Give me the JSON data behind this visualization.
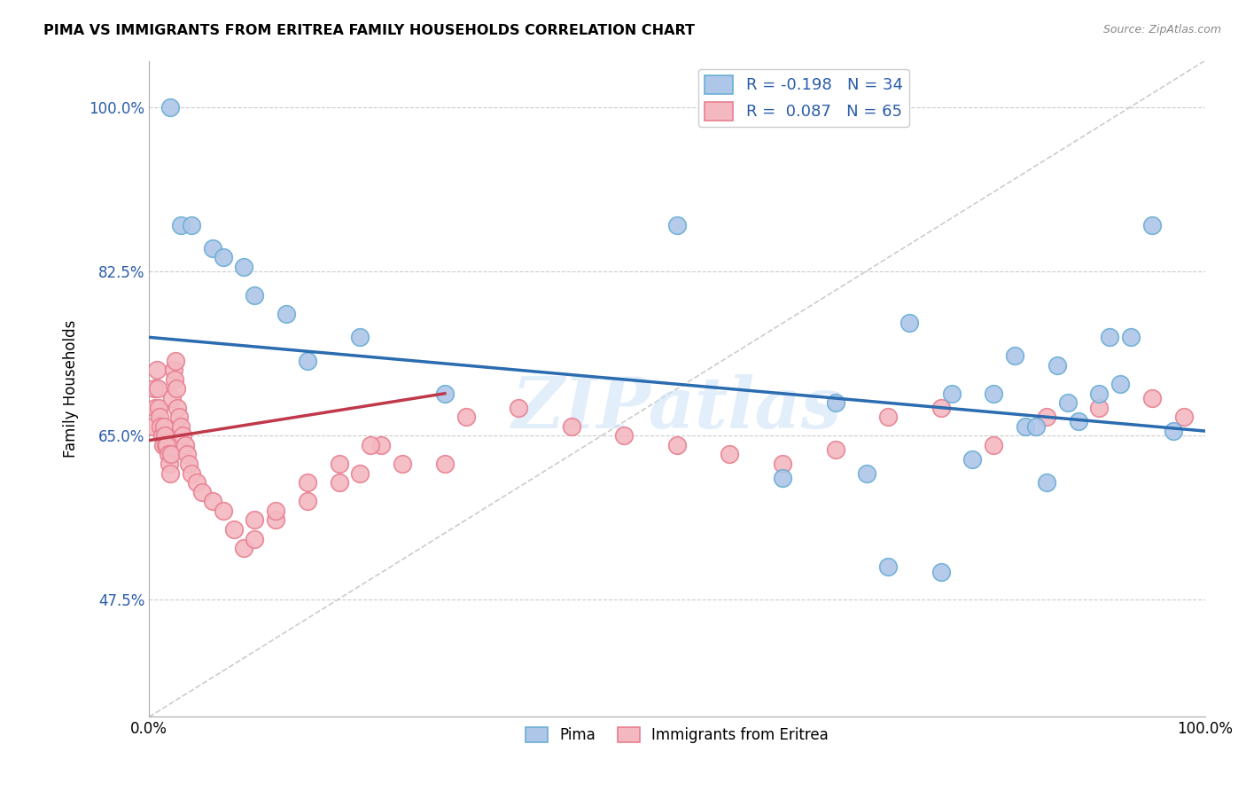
{
  "title": "PIMA VS IMMIGRANTS FROM ERITREA FAMILY HOUSEHOLDS CORRELATION CHART",
  "source": "Source: ZipAtlas.com",
  "ylabel": "Family Households",
  "xlim": [
    0.0,
    1.0
  ],
  "ylim": [
    0.35,
    1.05
  ],
  "yticks": [
    0.475,
    0.65,
    0.825,
    1.0
  ],
  "ytick_labels": [
    "47.5%",
    "65.0%",
    "82.5%",
    "100.0%"
  ],
  "pima_color": "#aec6e8",
  "pima_edge_color": "#6aaed6",
  "eritrea_color": "#f4b8c1",
  "eritrea_edge_color": "#e87f90",
  "trend_blue": "#2b6cb0",
  "trend_pink": "#c0394a",
  "watermark_color": "#d0e4f7",
  "legend_R_color": "#2a5caa",
  "pima_x": [
    0.02,
    0.03,
    0.04,
    0.06,
    0.07,
    0.09,
    0.1,
    0.13,
    0.15,
    0.2,
    0.28,
    0.5,
    0.6,
    0.72,
    0.76,
    0.78,
    0.8,
    0.82,
    0.83,
    0.84,
    0.85,
    0.86,
    0.87,
    0.88,
    0.9,
    0.91,
    0.92,
    0.93,
    0.95,
    0.97,
    0.65,
    0.68,
    0.7,
    0.75
  ],
  "pima_y": [
    1.0,
    0.875,
    0.875,
    0.85,
    0.84,
    0.83,
    0.8,
    0.78,
    0.73,
    0.755,
    0.695,
    0.875,
    0.605,
    0.77,
    0.695,
    0.625,
    0.695,
    0.735,
    0.66,
    0.66,
    0.6,
    0.725,
    0.685,
    0.665,
    0.695,
    0.755,
    0.705,
    0.755,
    0.875,
    0.655,
    0.685,
    0.61,
    0.51,
    0.505
  ],
  "eritrea_x": [
    0.004,
    0.005,
    0.006,
    0.007,
    0.008,
    0.009,
    0.01,
    0.011,
    0.012,
    0.013,
    0.014,
    0.015,
    0.016,
    0.017,
    0.018,
    0.019,
    0.02,
    0.021,
    0.022,
    0.023,
    0.024,
    0.025,
    0.026,
    0.027,
    0.028,
    0.03,
    0.032,
    0.034,
    0.036,
    0.038,
    0.04,
    0.045,
    0.05,
    0.06,
    0.07,
    0.08,
    0.09,
    0.1,
    0.12,
    0.15,
    0.18,
    0.2,
    0.22,
    0.28,
    0.3,
    0.35,
    0.4,
    0.45,
    0.5,
    0.55,
    0.6,
    0.65,
    0.7,
    0.75,
    0.8,
    0.85,
    0.9,
    0.95,
    0.98,
    0.1,
    0.12,
    0.15,
    0.18,
    0.21,
    0.24
  ],
  "eritrea_y": [
    0.66,
    0.7,
    0.68,
    0.72,
    0.7,
    0.68,
    0.67,
    0.66,
    0.65,
    0.64,
    0.66,
    0.65,
    0.64,
    0.64,
    0.63,
    0.62,
    0.61,
    0.63,
    0.69,
    0.72,
    0.71,
    0.73,
    0.7,
    0.68,
    0.67,
    0.66,
    0.65,
    0.64,
    0.63,
    0.62,
    0.61,
    0.6,
    0.59,
    0.58,
    0.57,
    0.55,
    0.53,
    0.54,
    0.56,
    0.58,
    0.6,
    0.61,
    0.64,
    0.62,
    0.67,
    0.68,
    0.66,
    0.65,
    0.64,
    0.63,
    0.62,
    0.635,
    0.67,
    0.68,
    0.64,
    0.67,
    0.68,
    0.69,
    0.67,
    0.56,
    0.57,
    0.6,
    0.62,
    0.64,
    0.62
  ],
  "diag_line_x": [
    0.0,
    1.0
  ],
  "diag_line_y": [
    0.35,
    1.05
  ],
  "pima_trend_x": [
    0.0,
    1.0
  ],
  "pima_trend_y": [
    0.755,
    0.655
  ],
  "eritrea_trend_x": [
    0.0,
    0.28
  ],
  "eritrea_trend_y": [
    0.645,
    0.695
  ]
}
